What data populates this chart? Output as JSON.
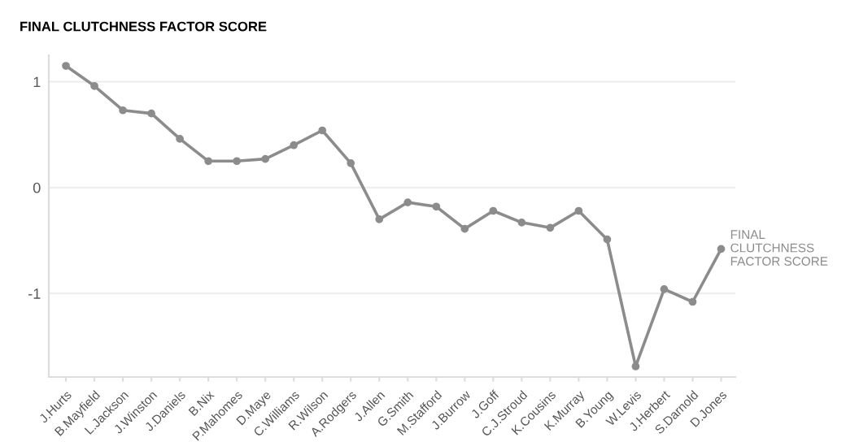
{
  "chart_data": {
    "type": "line",
    "title": "FINAL CLUTCHNESS FACTOR SCORE",
    "categories": [
      "J.Hurts",
      "B.Mayfield",
      "L.Jackson",
      "J.Winston",
      "J.Daniels",
      "B.Nix",
      "P.Mahomes",
      "D.Maye",
      "C.Williams",
      "R.Wilson",
      "A.Rodgers",
      "J.Allen",
      "G.Smith",
      "M.Stafford",
      "J.Burrow",
      "J.Goff",
      "C.J.Stroud",
      "K.Cousins",
      "K.Murray",
      "B.Young",
      "W.Levis",
      "J.Herbert",
      "S.Darnold",
      "D.Jones"
    ],
    "series": [
      {
        "name": "FINAL CLUTCHNESS FACTOR SCORE",
        "color": "#8c8c8c",
        "values": [
          1.15,
          0.96,
          0.73,
          0.7,
          0.46,
          0.25,
          0.25,
          0.27,
          0.4,
          0.54,
          0.23,
          -0.3,
          -0.14,
          -0.18,
          -0.39,
          -0.22,
          -0.33,
          -0.38,
          -0.22,
          -0.49,
          -1.69,
          -0.96,
          -1.08,
          -0.58
        ]
      }
    ],
    "ylim": [
      -1.79,
      1.25
    ],
    "yticks": [
      -1,
      0,
      1
    ],
    "grid": "y",
    "marker": "circle",
    "line_style": "solid"
  }
}
